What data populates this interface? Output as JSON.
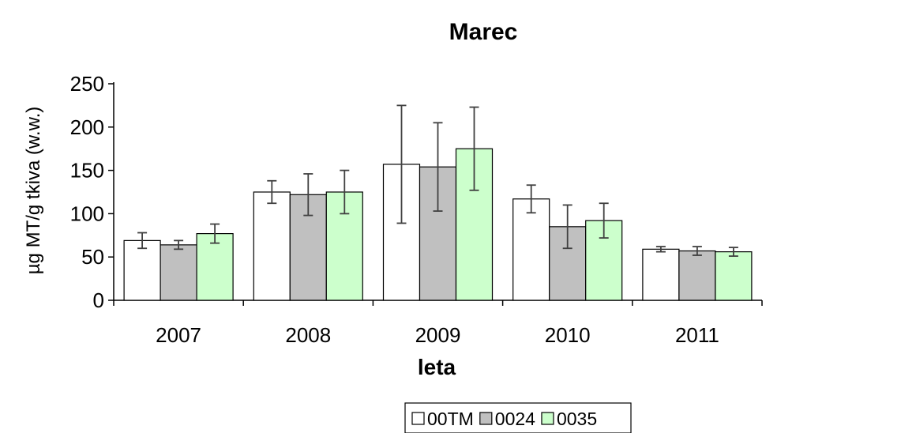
{
  "chart_data": {
    "type": "bar",
    "title": "Marec",
    "xlabel": "leta",
    "ylabel": "µg MT/g tkiva (w.w.)",
    "ylim": [
      0,
      250
    ],
    "yticks": [
      0,
      50,
      100,
      150,
      200,
      250
    ],
    "grid": false,
    "legend_position": "bottom",
    "categories": [
      "2007",
      "2008",
      "2009",
      "2010",
      "2011"
    ],
    "series": [
      {
        "name": "00TM",
        "color": "#ffffff",
        "values": [
          69,
          125,
          157,
          117,
          59
        ],
        "errors": [
          9,
          13,
          68,
          16,
          3
        ]
      },
      {
        "name": "0024",
        "color": "#c0c0c0",
        "values": [
          64,
          122,
          154,
          85,
          57
        ],
        "errors": [
          5,
          24,
          51,
          25,
          5
        ]
      },
      {
        "name": "0035",
        "color": "#ccffcc",
        "values": [
          77,
          125,
          175,
          92,
          56
        ],
        "errors": [
          11,
          25,
          48,
          20,
          5
        ]
      }
    ]
  }
}
